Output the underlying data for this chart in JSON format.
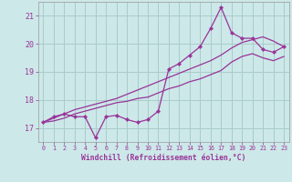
{
  "bg_color": "#cce8e8",
  "grid_color": "#aacccc",
  "line_color": "#993399",
  "hours": [
    0,
    1,
    2,
    3,
    4,
    5,
    6,
    7,
    8,
    9,
    10,
    11,
    12,
    13,
    14,
    15,
    16,
    17,
    18,
    19,
    20,
    21,
    22,
    23
  ],
  "main_data": [
    17.2,
    17.4,
    17.5,
    17.4,
    17.4,
    16.65,
    17.4,
    17.45,
    17.3,
    17.2,
    17.3,
    17.6,
    19.1,
    19.3,
    19.6,
    19.9,
    20.55,
    21.3,
    20.4,
    20.2,
    20.2,
    19.8,
    19.7,
    19.9
  ],
  "line_upper": [
    17.2,
    17.35,
    17.5,
    17.65,
    17.75,
    17.85,
    17.95,
    18.05,
    18.2,
    18.35,
    18.5,
    18.65,
    18.8,
    18.95,
    19.1,
    19.25,
    19.4,
    19.6,
    19.85,
    20.05,
    20.15,
    20.25,
    20.1,
    19.9
  ],
  "line_lower": [
    17.2,
    17.25,
    17.35,
    17.5,
    17.6,
    17.7,
    17.8,
    17.9,
    17.95,
    18.05,
    18.1,
    18.25,
    18.4,
    18.5,
    18.65,
    18.75,
    18.9,
    19.05,
    19.35,
    19.55,
    19.65,
    19.5,
    19.4,
    19.55
  ],
  "ylim": [
    16.5,
    21.5
  ],
  "yticks": [
    17,
    18,
    19,
    20,
    21
  ],
  "xlim": [
    -0.5,
    23.5
  ],
  "xticks": [
    0,
    1,
    2,
    3,
    4,
    5,
    6,
    7,
    8,
    9,
    10,
    11,
    12,
    13,
    14,
    15,
    16,
    17,
    18,
    19,
    20,
    21,
    22,
    23
  ],
  "xlabel": "Windchill (Refroidissement éolien,°C)"
}
